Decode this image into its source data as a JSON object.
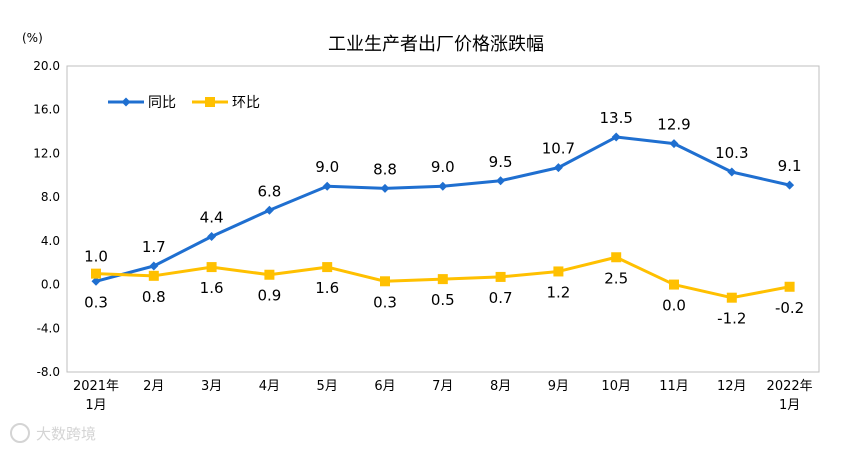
{
  "chart_data": {
    "type": "line",
    "title": "工业生产者出厂价格涨跌幅",
    "unit": "(%)",
    "categories": [
      [
        "2021年",
        "1月"
      ],
      [
        "2月"
      ],
      [
        "3月"
      ],
      [
        "4月"
      ],
      [
        "5月"
      ],
      [
        "6月"
      ],
      [
        "7月"
      ],
      [
        "8月"
      ],
      [
        "9月"
      ],
      [
        "10月"
      ],
      [
        "11月"
      ],
      [
        "12月"
      ],
      [
        "2022年",
        "1月"
      ]
    ],
    "series": [
      {
        "name": "同比",
        "color": "#1f6fd0",
        "marker": "diamond",
        "values": [
          0.3,
          1.7,
          4.4,
          6.8,
          9.0,
          8.8,
          9.0,
          9.5,
          10.7,
          13.5,
          12.9,
          10.3,
          9.1
        ]
      },
      {
        "name": "环比",
        "color": "#ffc000",
        "marker": "square",
        "values": [
          1.0,
          0.8,
          1.6,
          0.9,
          1.6,
          0.3,
          0.5,
          0.7,
          1.2,
          2.5,
          0.0,
          -1.2,
          -0.2
        ]
      }
    ],
    "data_labels": {
      "同比": [
        "0.3",
        "1.7",
        "4.4",
        "6.8",
        "9.0",
        "8.8",
        "9.0",
        "9.5",
        "10.7",
        "13.5",
        "12.9",
        "10.3",
        "9.1"
      ],
      "环比": [
        "1.0",
        "0.8",
        "1.6",
        "0.9",
        "1.6",
        "0.3",
        "0.5",
        "0.7",
        "1.2",
        "2.5",
        "0.0",
        "-1.2",
        "-0.2"
      ]
    },
    "yticks": [
      "20.0",
      "16.0",
      "12.0",
      "8.0",
      "4.0",
      "0.0",
      "-4.0",
      "-8.0"
    ],
    "ylim": [
      -8,
      20
    ],
    "legend_position": "top-left",
    "grid": false
  },
  "watermark": "大数跨境"
}
